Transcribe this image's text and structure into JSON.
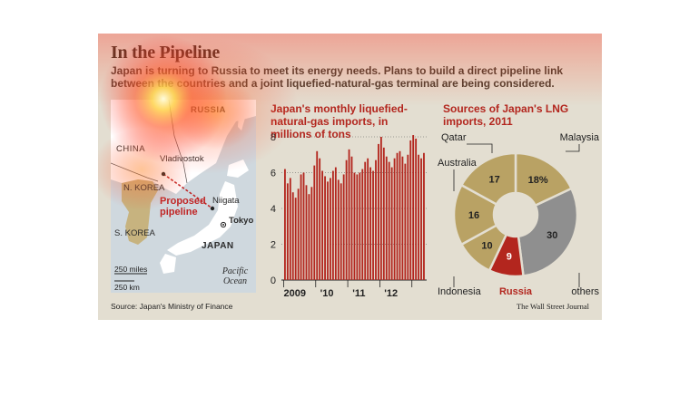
{
  "header": {
    "title": "In the Pipeline",
    "subtitle": "Japan is turning to Russia to meet its energy needs. Plans to build a direct pipeline link between the countries and a joint liquefied-natural-gas terminal are being considered."
  },
  "map": {
    "labels": {
      "russia": "RUSSIA",
      "china": "CHINA",
      "vladivostok": "Vladivostok",
      "n_korea": "N. KOREA",
      "proposed_pipeline": "Proposed pipeline",
      "niigata": "Niigata",
      "tokyo": "Tokyo",
      "s_korea": "S. KOREA",
      "japan": "JAPAN",
      "pacific_ocean": "Pacific Ocean",
      "scale_miles": "250 miles",
      "scale_km": "250 km"
    },
    "colors": {
      "sea": "#cfd8de",
      "land": "#ffffff",
      "korea": "#c7b37f",
      "pipeline": "#c02626"
    }
  },
  "chart_data": [
    {
      "type": "bar",
      "title": "Japan's monthly liquefied-natural-gas imports, in millions of tons",
      "ylim": [
        0,
        8
      ],
      "yticks": [
        "0",
        "2",
        "4",
        "6",
        "8"
      ],
      "xtick_labels": [
        "2009",
        "'10",
        "'11",
        "'12"
      ],
      "grid": true,
      "color": "#b3261e",
      "values": [
        6.2,
        5.4,
        5.7,
        4.9,
        4.6,
        5.1,
        5.9,
        6.0,
        5.3,
        4.8,
        5.2,
        6.4,
        7.2,
        6.8,
        6.1,
        5.8,
        5.5,
        5.7,
        6.1,
        6.3,
        5.6,
        5.4,
        5.9,
        6.7,
        7.3,
        6.9,
        6.0,
        5.9,
        6.0,
        6.2,
        6.6,
        6.8,
        6.3,
        6.1,
        6.7,
        7.6,
        8.0,
        7.4,
        6.9,
        6.6,
        6.3,
        6.8,
        7.1,
        7.2,
        6.9,
        6.5,
        7.0,
        7.8,
        8.1,
        7.9,
        7.0,
        6.8,
        7.1
      ]
    },
    {
      "type": "pie",
      "title": "Sources of Japan's LNG imports, 2011",
      "slices": [
        {
          "label": "Malaysia",
          "value": 18,
          "value_label": "18%",
          "color": "#b9a264"
        },
        {
          "label": "others",
          "value": 30,
          "value_label": "30",
          "color": "#8f8f8f"
        },
        {
          "label": "Russia",
          "value": 9,
          "value_label": "9",
          "color": "#b3261e"
        },
        {
          "label": "Indonesia",
          "value": 10,
          "value_label": "10",
          "color": "#b9a264"
        },
        {
          "label": "Australia",
          "value": 16,
          "value_label": "16",
          "color": "#b9a264"
        },
        {
          "label": "Qatar",
          "value": 17,
          "value_label": "17",
          "color": "#b9a264"
        }
      ]
    }
  ],
  "footer": {
    "source": "Source: Japan's Ministry of Finance",
    "credit": "The Wall Street Journal"
  }
}
